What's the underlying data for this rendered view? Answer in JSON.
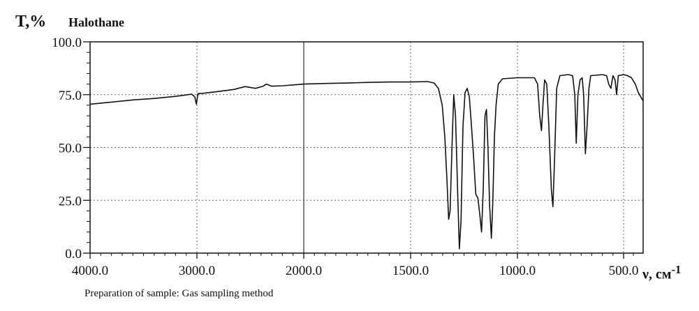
{
  "chart_data": {
    "type": "line",
    "title": "Halothane",
    "ylabel": "T,%",
    "xlabel_text": "ν, см",
    "xlabel_sup": "-1",
    "xlim": [
      4000,
      400
    ],
    "ylim": [
      0,
      100
    ],
    "x_ticks": [
      "4000.0",
      "3000.0",
      "2000.0",
      "1500.0",
      "1000.0",
      "500.0"
    ],
    "y_ticks": [
      "0.0",
      "25.0",
      "50.0",
      "75.0",
      "100.0"
    ],
    "grid": true,
    "series": [
      {
        "points": [
          [
            4000,
            70.5
          ],
          [
            3800,
            71.5
          ],
          [
            3600,
            72.5
          ],
          [
            3400,
            73.2
          ],
          [
            3200,
            74.2
          ],
          [
            3050,
            75.2
          ],
          [
            3020,
            74.0
          ],
          [
            3005,
            70.5
          ],
          [
            2990,
            75.5
          ],
          [
            2950,
            75.6
          ],
          [
            2800,
            76.5
          ],
          [
            2650,
            77.5
          ],
          [
            2550,
            78.8
          ],
          [
            2450,
            78.0
          ],
          [
            2380,
            79.0
          ],
          [
            2350,
            80.0
          ],
          [
            2300,
            79.0
          ],
          [
            2200,
            79.2
          ],
          [
            2100,
            79.6
          ],
          [
            2000,
            80.0
          ],
          [
            1900,
            80.3
          ],
          [
            1800,
            80.5
          ],
          [
            1700,
            80.8
          ],
          [
            1600,
            81.0
          ],
          [
            1500,
            81.0
          ],
          [
            1420,
            81.2
          ],
          [
            1390,
            80.5
          ],
          [
            1370,
            78.0
          ],
          [
            1352,
            70.0
          ],
          [
            1340,
            55.0
          ],
          [
            1330,
            35.0
          ],
          [
            1322,
            16.0
          ],
          [
            1315,
            20.0
          ],
          [
            1305,
            55.0
          ],
          [
            1298,
            75.0
          ],
          [
            1290,
            65.0
          ],
          [
            1280,
            30.0
          ],
          [
            1272,
            2.0
          ],
          [
            1264,
            15.0
          ],
          [
            1255,
            60.0
          ],
          [
            1245,
            76.0
          ],
          [
            1235,
            78.0
          ],
          [
            1225,
            74.0
          ],
          [
            1215,
            60.0
          ],
          [
            1205,
            45.0
          ],
          [
            1195,
            28.0
          ],
          [
            1185,
            26.0
          ],
          [
            1175,
            17.0
          ],
          [
            1168,
            10.0
          ],
          [
            1160,
            30.0
          ],
          [
            1152,
            65.0
          ],
          [
            1145,
            68.0
          ],
          [
            1138,
            50.0
          ],
          [
            1130,
            22.0
          ],
          [
            1122,
            7.0
          ],
          [
            1115,
            25.0
          ],
          [
            1108,
            55.0
          ],
          [
            1100,
            70.0
          ],
          [
            1090,
            80.0
          ],
          [
            1070,
            82.5
          ],
          [
            1000,
            83.0
          ],
          [
            950,
            83.0
          ],
          [
            920,
            83.0
          ],
          [
            905,
            80.0
          ],
          [
            895,
            65.0
          ],
          [
            887,
            58.0
          ],
          [
            880,
            70.0
          ],
          [
            872,
            82.0
          ],
          [
            862,
            80.0
          ],
          [
            852,
            60.0
          ],
          [
            840,
            30.0
          ],
          [
            833,
            22.0
          ],
          [
            825,
            45.0
          ],
          [
            815,
            78.0
          ],
          [
            800,
            84.0
          ],
          [
            760,
            84.5
          ],
          [
            740,
            84.0
          ],
          [
            730,
            75.0
          ],
          [
            723,
            52.0
          ],
          [
            715,
            75.0
          ],
          [
            705,
            82.0
          ],
          [
            695,
            83.0
          ],
          [
            688,
            75.0
          ],
          [
            680,
            47.0
          ],
          [
            672,
            60.0
          ],
          [
            663,
            78.0
          ],
          [
            655,
            84.0
          ],
          [
            600,
            84.5
          ],
          [
            580,
            84.0
          ],
          [
            570,
            80.0
          ],
          [
            560,
            78.0
          ],
          [
            550,
            84.0
          ],
          [
            540,
            82.0
          ],
          [
            533,
            75.0
          ],
          [
            525,
            84.0
          ],
          [
            500,
            84.5
          ],
          [
            480,
            84.0
          ],
          [
            460,
            83.0
          ],
          [
            440,
            80.0
          ],
          [
            425,
            76.0
          ],
          [
            412,
            74.0
          ],
          [
            400,
            72.0
          ]
        ]
      }
    ]
  },
  "footer": {
    "note": "Preparation of sample: Gas sampling method"
  },
  "colors": {
    "line": "#111111",
    "grid": "#666666"
  }
}
